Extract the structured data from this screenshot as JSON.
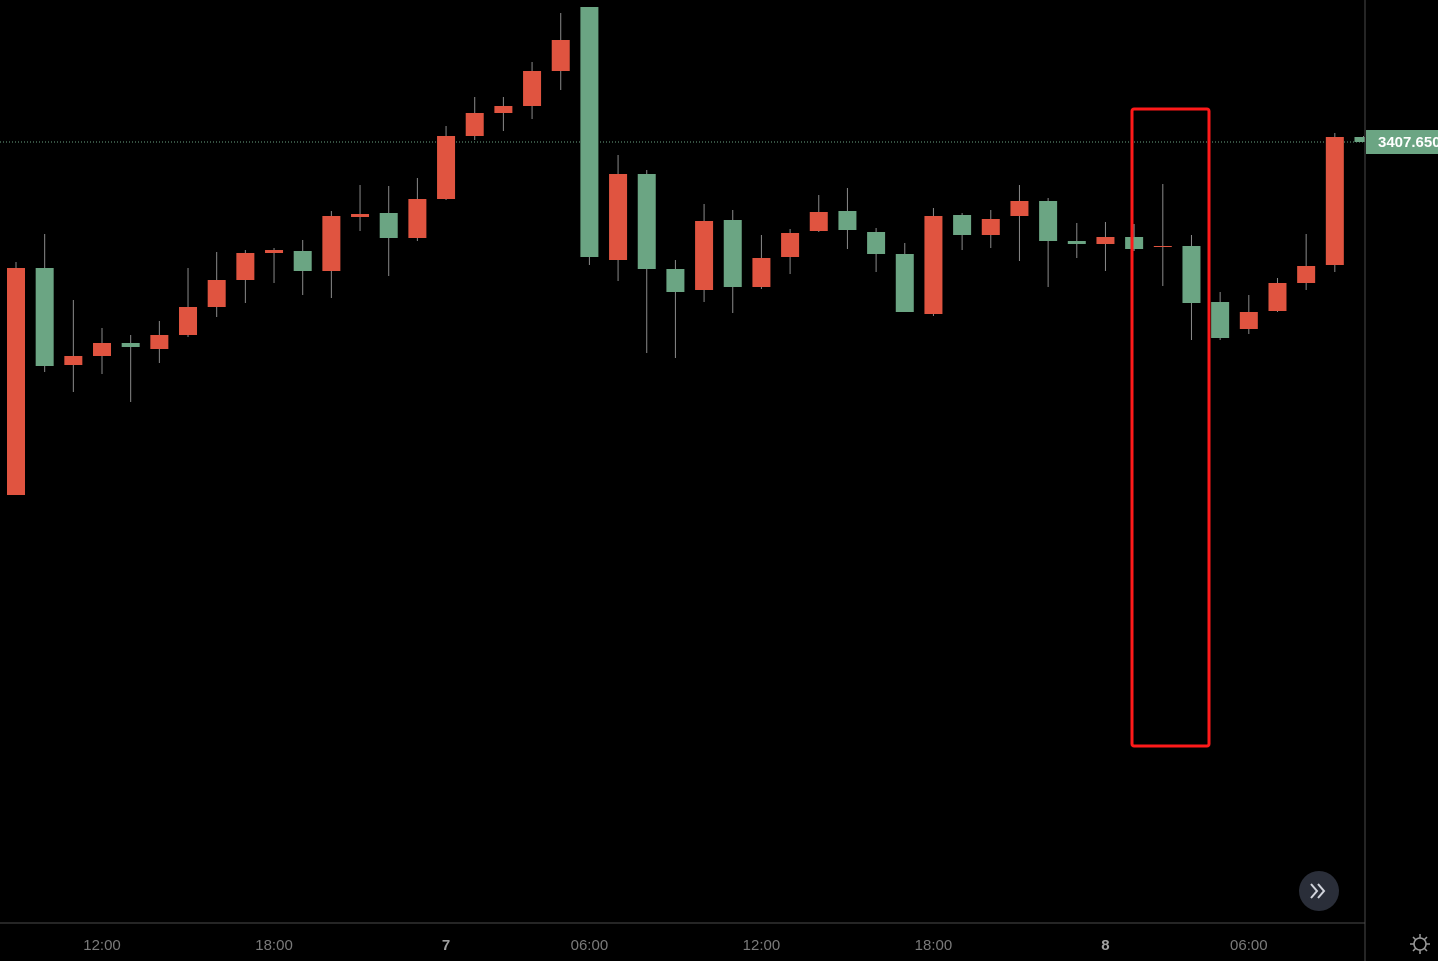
{
  "chart_data": {
    "type": "candlestick",
    "categories": [
      null,
      null,
      null,
      "12:00",
      null,
      null,
      null,
      null,
      null,
      "18:00",
      null,
      null,
      null,
      null,
      null,
      "7",
      null,
      null,
      null,
      null,
      "06:00",
      null,
      null,
      null,
      null,
      null,
      "12:00",
      null,
      null,
      null,
      null,
      null,
      "18:00",
      null,
      null,
      null,
      null,
      null,
      "8",
      null,
      null,
      null,
      null,
      "06:00",
      null,
      null,
      null,
      null
    ],
    "open": [
      3231.15,
      3344.65,
      3296.15,
      3300.65,
      3307.15,
      3304.15,
      3311.15,
      3325.15,
      3338.65,
      3352.15,
      3353.15,
      3343.15,
      3370.15,
      3372.15,
      3359.65,
      3379.15,
      3410.65,
      3422.15,
      3425.65,
      3443.15,
      3475.15,
      3348.65,
      3391.65,
      3344.15,
      3333.65,
      3368.65,
      3335.15,
      3350.15,
      3363.15,
      3373.15,
      3362.65,
      3351.65,
      3321.65,
      3371.15,
      3361.15,
      3370.65,
      3378.15,
      3358.15,
      3356.65,
      3360.15,
      3355.15,
      3355.65,
      3327.65,
      3314.15,
      3323.15,
      3337.15,
      3346.15,
      3410.15
    ],
    "high": [
      3347.65,
      3361.65,
      3328.65,
      3314.65,
      3311.15,
      3318.15,
      3344.65,
      3352.65,
      3353.65,
      3354.65,
      3358.65,
      3373.15,
      3386.15,
      3385.65,
      3389.65,
      3415.65,
      3430.15,
      3430.15,
      3447.65,
      3472.15,
      3475.15,
      3401.15,
      3393.65,
      3348.65,
      3376.65,
      3373.65,
      3361.15,
      3364.15,
      3381.15,
      3384.65,
      3364.65,
      3357.15,
      3374.65,
      3372.15,
      3373.65,
      3386.15,
      3379.65,
      3367.15,
      3367.65,
      3366.65,
      3386.65,
      3361.15,
      3332.65,
      3331.15,
      3339.65,
      3361.65,
      3412.15,
      3410.65
    ],
    "low": [
      3231.15,
      3292.65,
      3282.65,
      3291.65,
      3277.65,
      3297.15,
      3310.15,
      3320.15,
      3327.15,
      3337.15,
      3331.15,
      3329.65,
      3363.15,
      3340.65,
      3358.15,
      3378.65,
      3408.65,
      3413.15,
      3419.15,
      3433.65,
      3346.15,
      3338.15,
      3302.15,
      3299.65,
      3327.65,
      3322.15,
      3334.15,
      3341.65,
      3362.65,
      3354.15,
      3342.65,
      3322.65,
      3320.65,
      3353.65,
      3354.65,
      3348.15,
      3335.15,
      3349.65,
      3343.15,
      3353.15,
      3335.65,
      3308.65,
      3308.65,
      3311.65,
      3322.65,
      3333.65,
      3342.65,
      3407.65
    ],
    "close": [
      3344.65,
      3295.65,
      3300.65,
      3307.15,
      3305.15,
      3311.15,
      3325.15,
      3338.65,
      3352.15,
      3353.65,
      3343.15,
      3370.65,
      3371.65,
      3359.65,
      3379.15,
      3410.65,
      3422.15,
      3425.65,
      3443.15,
      3458.65,
      3350.15,
      3391.65,
      3344.15,
      3332.65,
      3368.15,
      3335.15,
      3349.65,
      3362.15,
      3372.65,
      3363.65,
      3351.65,
      3322.65,
      3370.65,
      3361.15,
      3369.15,
      3378.15,
      3358.15,
      3356.65,
      3360.15,
      3354.15,
      3355.65,
      3327.15,
      3309.65,
      3322.65,
      3337.15,
      3345.65,
      3410.15,
      3407.65
    ],
    "up_color": "#e05440",
    "down_color": "#6ba583",
    "ylim": [
      3017.65,
      3478.65
    ],
    "last_price": {
      "value": 3407.65,
      "label": "3407.650"
    }
  }
}
